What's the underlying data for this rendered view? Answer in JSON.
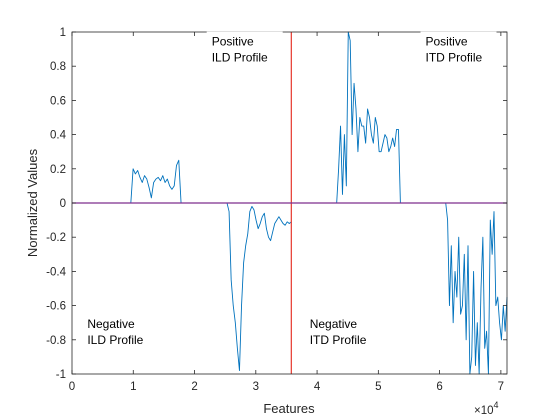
{
  "chart_data": {
    "type": "line",
    "xlabel": "Features",
    "ylabel": "Normalized Values",
    "x_multiplier_label": "×10",
    "x_multiplier_exponent": "4",
    "xlim": [
      0,
      71000
    ],
    "ylim": [
      -1,
      1
    ],
    "x_ticks": [
      0,
      10000,
      20000,
      30000,
      40000,
      50000,
      60000,
      70000
    ],
    "x_tick_labels": [
      "0",
      "1",
      "2",
      "3",
      "4",
      "5",
      "6",
      "7"
    ],
    "y_ticks": [
      1,
      0.8,
      0.6,
      0.4,
      0.2,
      0,
      -0.2,
      -0.4,
      -0.6,
      -0.8,
      -1
    ],
    "y_tick_labels": [
      "1",
      "0.8",
      "0.6",
      "0.4",
      "0.2",
      "0",
      "-0.2",
      "-0.4",
      "-0.6",
      "-0.8",
      "-1"
    ],
    "grid": false,
    "colors": {
      "signal": "#0072BD",
      "divider": "#E8453C",
      "baseline": "#7E2F8E"
    },
    "divider_x": 35800,
    "baseline_y": 0,
    "annotations": [
      {
        "name": "positive-ild",
        "lines": [
          "Positive",
          "ILD Profile"
        ],
        "x": 22800,
        "y": 0.92
      },
      {
        "name": "positive-itd",
        "lines": [
          "Positive",
          "ITD Profile"
        ],
        "x": 57700,
        "y": 0.92
      },
      {
        "name": "negative-ild",
        "lines": [
          "Negative",
          "ILD Profile"
        ],
        "x": 2500,
        "y": -0.73
      },
      {
        "name": "negative-itd",
        "lines": [
          "Negative",
          "ITD Profile"
        ],
        "x": 38800,
        "y": -0.73
      }
    ],
    "series": [
      {
        "segments": [
          {
            "x_start": 0,
            "x_end": 9600,
            "values": [
              0,
              0
            ]
          },
          {
            "x_start": 9600,
            "x_end": 17800,
            "values": [
              0,
              0.2,
              0.17,
              0.19,
              0.15,
              0.12,
              0.16,
              0.14,
              0.09,
              0.03,
              0.12,
              0.14,
              0.15,
              0.13,
              0.16,
              0.12,
              0.14,
              0.1,
              0.08,
              0.1,
              0.22,
              0.25,
              0
            ]
          },
          {
            "x_start": 17800,
            "x_end": 25300,
            "values": [
              0,
              0
            ]
          },
          {
            "x_start": 25300,
            "x_end": 35800,
            "values": [
              0,
              -0.05,
              -0.45,
              -0.6,
              -0.7,
              -0.85,
              -0.98,
              -0.6,
              -0.35,
              -0.25,
              -0.18,
              -0.05,
              -0.02,
              -0.04,
              -0.1,
              -0.15,
              -0.12,
              -0.08,
              -0.06,
              -0.15,
              -0.2,
              -0.22,
              -0.17,
              -0.12,
              -0.1,
              -0.08,
              -0.1,
              -0.12,
              -0.13,
              -0.11,
              -0.12,
              -0.11
            ]
          },
          {
            "x_start": 35800,
            "x_end": 43200,
            "values": [
              0,
              0
            ]
          },
          {
            "x_start": 43200,
            "x_end": 53600,
            "values": [
              0,
              0.2,
              0.45,
              0.05,
              0.4,
              0.1,
              1.0,
              0.95,
              0.4,
              0.7,
              0.55,
              0.3,
              0.5,
              0.45,
              0.45,
              0.35,
              0.55,
              0.5,
              0.4,
              0.35,
              0.5,
              0.45,
              0.3,
              0.3,
              0.35,
              0.4,
              0.38,
              0.3,
              0.33,
              0.38,
              0.33,
              0.43,
              0.43,
              0
            ]
          },
          {
            "x_start": 53600,
            "x_end": 61000,
            "values": [
              0,
              0
            ]
          },
          {
            "x_start": 61000,
            "x_end": 71000,
            "values": [
              0,
              -0.1,
              -0.6,
              -0.25,
              -0.7,
              -0.4,
              -0.55,
              -0.2,
              -0.65,
              -0.6,
              -0.3,
              -0.8,
              -0.25,
              -1.0,
              -0.9,
              -0.4,
              -0.95,
              -0.7,
              -1.0,
              -0.5,
              -0.2,
              -0.85,
              -0.75,
              -1.0,
              -0.1,
              -0.3,
              -0.05,
              -0.6,
              -0.55,
              -0.7,
              -0.8,
              -0.6,
              -0.75,
              -0.55
            ]
          }
        ]
      }
    ]
  }
}
